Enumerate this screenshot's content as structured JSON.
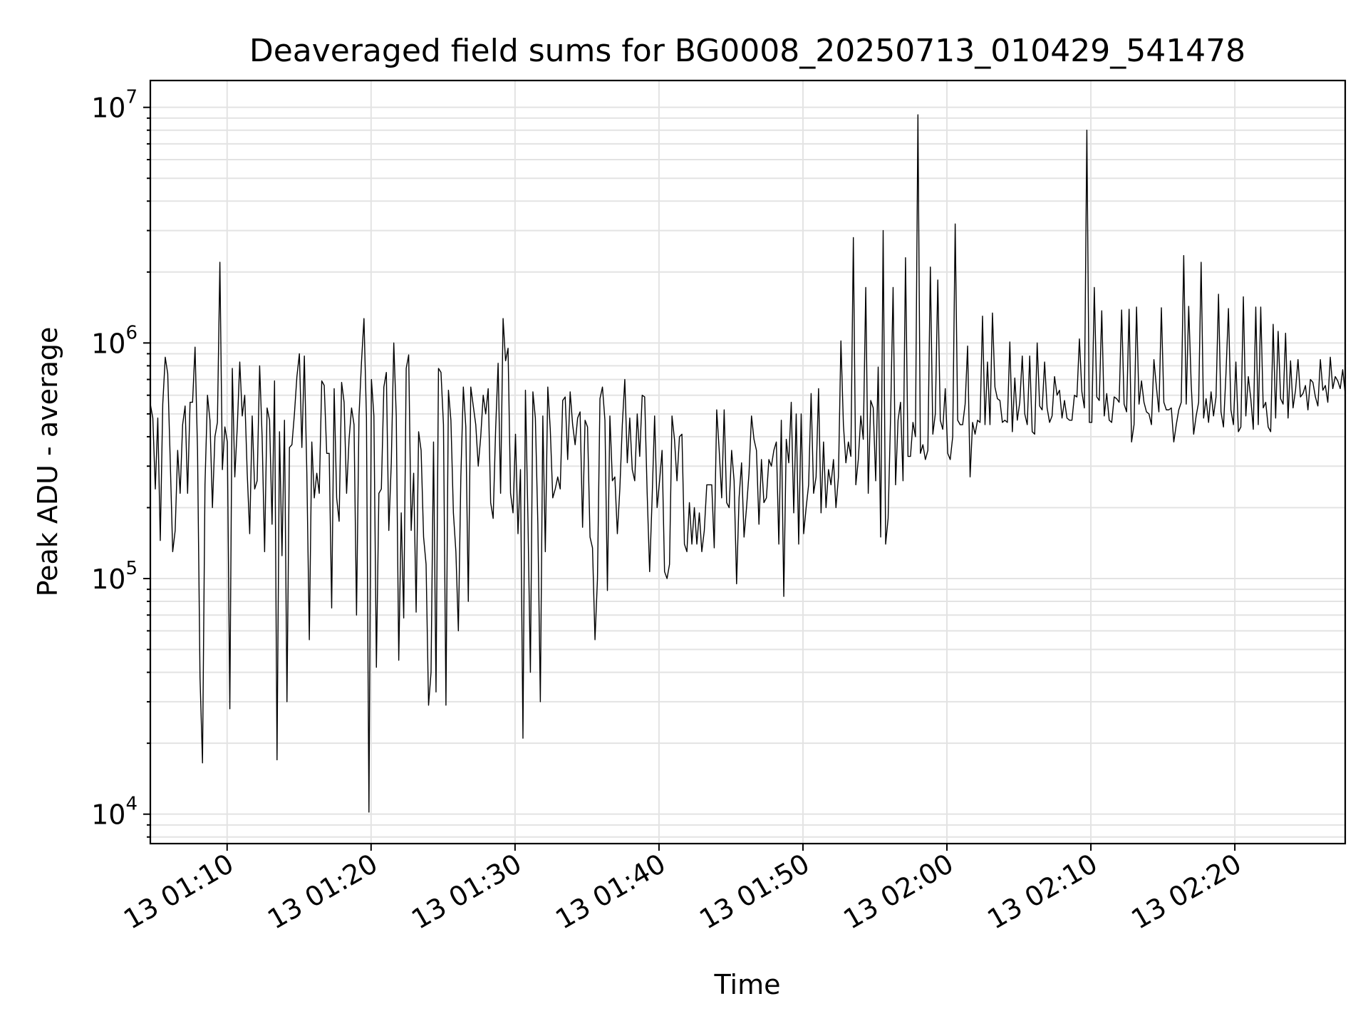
{
  "chart_data": {
    "type": "line",
    "title": "Deaveraged field sums for BG0008_20250713_010429_541478",
    "xlabel": "Time",
    "ylabel": "Peak ADU - average",
    "yscale": "log",
    "ylim": [
      7500,
      13000000
    ],
    "xlim": [
      "2025-07-13 01:04:40",
      "2025-07-13 02:27:40"
    ],
    "grid": true,
    "x_ticks": [
      {
        "value": "2025-07-13 01:10",
        "label": "13 01:10"
      },
      {
        "value": "2025-07-13 01:20",
        "label": "13 01:20"
      },
      {
        "value": "2025-07-13 01:30",
        "label": "13 01:30"
      },
      {
        "value": "2025-07-13 01:40",
        "label": "13 01:40"
      },
      {
        "value": "2025-07-13 01:50",
        "label": "13 01:50"
      },
      {
        "value": "2025-07-13 02:00",
        "label": "13 02:00"
      },
      {
        "value": "2025-07-13 02:10",
        "label": "13 02:10"
      },
      {
        "value": "2025-07-13 02:20",
        "label": "13 02:20"
      }
    ],
    "y_ticks": [
      {
        "value": 10000,
        "base": "10",
        "exp": "4"
      },
      {
        "value": 100000,
        "base": "10",
        "exp": "5"
      },
      {
        "value": 1000000,
        "base": "10",
        "exp": "6"
      },
      {
        "value": 10000000,
        "base": "10",
        "exp": "7"
      }
    ],
    "series": [
      {
        "color": "#000000",
        "x_start": "2025-07-13 01:04:40",
        "x_end": "2025-07-13 02:27:40",
        "values": [
          550000,
          480000,
          240000,
          480000,
          145000,
          550000,
          870000,
          740000,
          320000,
          130000,
          160000,
          350000,
          230000,
          450000,
          540000,
          230000,
          560000,
          560000,
          960000,
          350000,
          38000,
          16500,
          250000,
          600000,
          470000,
          200000,
          400000,
          460000,
          2200000,
          290000,
          440000,
          380000,
          28000,
          780000,
          270000,
          440000,
          830000,
          490000,
          600000,
          280000,
          155000,
          490000,
          240000,
          260000,
          800000,
          400000,
          130000,
          530000,
          470000,
          170000,
          690000,
          17000,
          420000,
          125000,
          470000,
          30000,
          360000,
          370000,
          500000,
          720000,
          900000,
          360000,
          880000,
          280000,
          55000,
          380000,
          220000,
          280000,
          230000,
          690000,
          660000,
          340000,
          340000,
          75000,
          640000,
          220000,
          175000,
          680000,
          560000,
          230000,
          390000,
          530000,
          450000,
          70000,
          490000,
          830000,
          1270000,
          480000,
          10200,
          700000,
          490000,
          42000,
          230000,
          240000,
          650000,
          750000,
          160000,
          310000,
          1000000,
          490000,
          45000,
          190000,
          68000,
          780000,
          890000,
          160000,
          280000,
          72000,
          420000,
          350000,
          150000,
          115000,
          29000,
          40000,
          380000,
          33000,
          780000,
          750000,
          450000,
          29000,
          630000,
          470000,
          190000,
          130000,
          60000,
          270000,
          650000,
          440000,
          80000,
          650000,
          540000,
          450000,
          300000,
          400000,
          600000,
          500000,
          640000,
          210000,
          180000,
          430000,
          820000,
          230000,
          1270000,
          840000,
          950000,
          230000,
          190000,
          410000,
          155000,
          290000,
          21000,
          630000,
          180000,
          40000,
          620000,
          480000,
          170000,
          30000,
          490000,
          130000,
          650000,
          430000,
          220000,
          240000,
          270000,
          240000,
          570000,
          590000,
          320000,
          620000,
          450000,
          370000,
          480000,
          510000,
          165000,
          470000,
          440000,
          150000,
          135000,
          55000,
          100000,
          580000,
          650000,
          470000,
          89000,
          490000,
          260000,
          270000,
          155000,
          240000,
          450000,
          700000,
          310000,
          480000,
          290000,
          260000,
          500000,
          330000,
          600000,
          590000,
          230000,
          107000,
          220000,
          490000,
          200000,
          260000,
          350000,
          107000,
          100000,
          115000,
          490000,
          390000,
          260000,
          400000,
          410000,
          140000,
          130000,
          210000,
          140000,
          200000,
          140000,
          190000,
          130000,
          160000,
          250000,
          250000,
          250000,
          135000,
          520000,
          350000,
          220000,
          520000,
          210000,
          200000,
          350000,
          260000,
          95000,
          220000,
          310000,
          150000,
          200000,
          280000,
          490000,
          390000,
          350000,
          170000,
          320000,
          210000,
          220000,
          320000,
          300000,
          350000,
          380000,
          140000,
          470000,
          84000,
          390000,
          310000,
          560000,
          190000,
          500000,
          140000,
          500000,
          155000,
          200000,
          250000,
          610000,
          230000,
          270000,
          640000,
          190000,
          380000,
          200000,
          290000,
          250000,
          320000,
          200000,
          270000,
          1020000,
          450000,
          310000,
          380000,
          330000,
          2800000,
          250000,
          320000,
          490000,
          390000,
          1720000,
          230000,
          570000,
          530000,
          260000,
          790000,
          150000,
          3000000,
          140000,
          180000,
          490000,
          1720000,
          250000,
          470000,
          560000,
          260000,
          2300000,
          330000,
          330000,
          460000,
          400000,
          9300000,
          340000,
          370000,
          320000,
          350000,
          2100000,
          410000,
          500000,
          1850000,
          470000,
          430000,
          640000,
          340000,
          320000,
          400000,
          3200000,
          470000,
          450000,
          450000,
          550000,
          970000,
          270000,
          460000,
          410000,
          470000,
          460000,
          1300000,
          450000,
          830000,
          450000,
          1340000,
          650000,
          580000,
          570000,
          460000,
          470000,
          460000,
          1010000,
          420000,
          710000,
          470000,
          560000,
          880000,
          500000,
          450000,
          880000,
          420000,
          410000,
          1000000,
          540000,
          520000,
          830000,
          530000,
          460000,
          490000,
          720000,
          600000,
          630000,
          480000,
          570000,
          480000,
          470000,
          470000,
          600000,
          590000,
          1040000,
          620000,
          530000,
          8000000,
          460000,
          460000,
          1720000,
          590000,
          570000,
          1370000,
          490000,
          610000,
          470000,
          460000,
          590000,
          580000,
          560000,
          1380000,
          550000,
          510000,
          1390000,
          380000,
          450000,
          1420000,
          550000,
          690000,
          560000,
          510000,
          500000,
          450000,
          850000,
          650000,
          510000,
          1410000,
          560000,
          520000,
          520000,
          530000,
          380000,
          450000,
          520000,
          560000,
          2350000,
          550000,
          1430000,
          670000,
          410000,
          490000,
          560000,
          2200000,
          480000,
          580000,
          460000,
          620000,
          490000,
          590000,
          1610000,
          510000,
          440000,
          740000,
          1400000,
          520000,
          450000,
          830000,
          420000,
          440000,
          1570000,
          490000,
          720000,
          580000,
          430000,
          1420000,
          450000,
          1420000,
          530000,
          560000,
          440000,
          420000,
          1200000,
          480000,
          1120000,
          580000,
          550000,
          1100000,
          480000,
          840000,
          530000,
          630000,
          850000,
          590000,
          610000,
          660000,
          520000,
          700000,
          680000,
          590000,
          540000,
          850000,
          630000,
          660000,
          560000,
          870000,
          640000,
          720000,
          690000,
          640000,
          770000,
          610000
        ]
      }
    ]
  }
}
